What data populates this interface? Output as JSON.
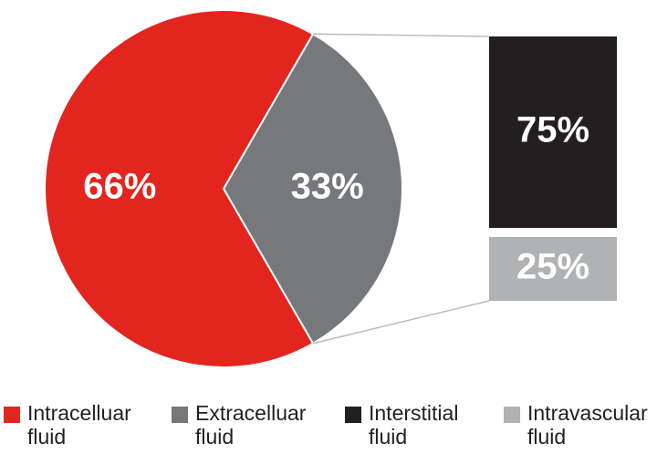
{
  "chart_data": {
    "type": "pie",
    "categories": [
      "Intracelluar fluid",
      "Extracelluar fluid"
    ],
    "values": [
      66,
      33
    ],
    "value_labels": [
      "66%",
      "33%"
    ],
    "colors": [
      "#e3251f",
      "#77787b"
    ],
    "breakdown": {
      "type": "bar",
      "categories": [
        "Interstitial fluid",
        "Intravascular fluid"
      ],
      "values": [
        75,
        25
      ],
      "value_labels": [
        "75%",
        "25%"
      ],
      "colors": [
        "#231f20",
        "#b1b2b4"
      ]
    }
  }
}
